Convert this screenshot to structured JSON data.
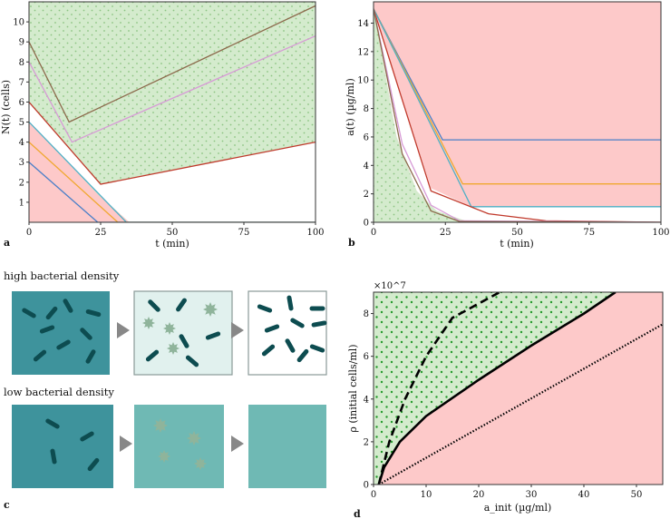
{
  "colors": {
    "green_fill": "#d4ebcd",
    "green_dot": "#8cc482",
    "pink_fill": "#fdc9c9",
    "white_band": "#ffffff",
    "dark_teal": "#0d4c50",
    "teal_high": "#3e939c",
    "teal_mid": "#6fb9b4",
    "teal_light": "#e1f1ee",
    "dead_cell": "#8fb49b",
    "arrow_gray": "#888888",
    "green_dots_d": "#239a2b"
  },
  "panel_labels": {
    "a": "a",
    "b": "b",
    "c": "c",
    "d": "d"
  },
  "chart_data": [
    {
      "id": "a",
      "type": "line",
      "xlabel": "t (min)",
      "ylabel": "N(t) (cells)",
      "xlim": [
        0,
        100
      ],
      "ylim": [
        0,
        11
      ],
      "xticks": [
        0,
        25,
        50,
        75,
        100
      ],
      "yticks": [
        1,
        2,
        3,
        4,
        5,
        6,
        7,
        8,
        9,
        10
      ],
      "regions": [
        "growth region (green, dotted)",
        "white band",
        "extinction region (pink)"
      ],
      "series": [
        {
          "name": "N0=9",
          "color": "#8c6a4c",
          "points": [
            [
              0,
              9
            ],
            [
              14,
              5
            ],
            [
              100,
              10.8
            ]
          ]
        },
        {
          "name": "N0=8",
          "color": "#d79ad6",
          "points": [
            [
              0,
              8
            ],
            [
              15,
              4
            ],
            [
              100,
              9.3
            ]
          ]
        },
        {
          "name": "N0=6",
          "color": "#c0392b",
          "points": [
            [
              0,
              6
            ],
            [
              25,
              1.9
            ],
            [
              100,
              4
            ]
          ]
        },
        {
          "name": "N0=5",
          "color": "#4fb0c6",
          "points": [
            [
              0,
              5
            ],
            [
              34,
              0
            ],
            [
              100,
              0
            ]
          ]
        },
        {
          "name": "N0=4",
          "color": "#f0a830",
          "points": [
            [
              0,
              4
            ],
            [
              31,
              0
            ],
            [
              100,
              0
            ]
          ]
        },
        {
          "name": "N0=3",
          "color": "#4a7fc8",
          "points": [
            [
              0,
              3
            ],
            [
              24,
              0
            ],
            [
              100,
              0
            ]
          ]
        }
      ]
    },
    {
      "id": "b",
      "type": "line",
      "xlabel": "t (min)",
      "ylabel": "a(t) (µg/ml)",
      "xlim": [
        0,
        100
      ],
      "ylim": [
        0,
        15.5
      ],
      "xticks": [
        0,
        25,
        50,
        75,
        100
      ],
      "yticks": [
        0,
        2,
        4,
        6,
        8,
        10,
        12,
        14
      ],
      "series": [
        {
          "name": "blue",
          "color": "#4a7fc8",
          "points": [
            [
              0,
              15
            ],
            [
              24,
              5.8
            ],
            [
              100,
              5.8
            ]
          ]
        },
        {
          "name": "orange",
          "color": "#f0a830",
          "points": [
            [
              0,
              15
            ],
            [
              31,
              2.7
            ],
            [
              100,
              2.7
            ]
          ]
        },
        {
          "name": "cyan",
          "color": "#4fb0c6",
          "points": [
            [
              0,
              15
            ],
            [
              34,
              1.1
            ],
            [
              100,
              1.1
            ]
          ]
        },
        {
          "name": "red",
          "color": "#c0392b",
          "points": [
            [
              0,
              15
            ],
            [
              20,
              2.2
            ],
            [
              40,
              0.6
            ],
            [
              60,
              0.1
            ],
            [
              100,
              0
            ]
          ]
        },
        {
          "name": "pink",
          "color": "#d79ad6",
          "points": [
            [
              0,
              15
            ],
            [
              10,
              5.5
            ],
            [
              20,
              1.2
            ],
            [
              30,
              0.1
            ],
            [
              100,
              0
            ]
          ]
        },
        {
          "name": "brown",
          "color": "#8c6a4c",
          "points": [
            [
              0,
              15
            ],
            [
              10,
              4.8
            ],
            [
              20,
              0.8
            ],
            [
              30,
              0.05
            ],
            [
              100,
              0
            ]
          ]
        }
      ]
    },
    {
      "id": "d",
      "type": "line",
      "xlabel": "a_init (µg/ml)",
      "ylabel": "ρ (initial cells/ml)",
      "axis_multiplier": "×10^7",
      "xlim": [
        0,
        55
      ],
      "ylim": [
        0,
        9
      ],
      "xticks": [
        0,
        10,
        20,
        30,
        40,
        50
      ],
      "yticks": [
        0,
        2,
        4,
        6,
        8
      ],
      "series": [
        {
          "name": "dashed boundary",
          "style": "dashed",
          "points": [
            [
              1,
              0
            ],
            [
              3,
              2
            ],
            [
              6,
              4
            ],
            [
              10,
              6
            ],
            [
              15,
              7.8
            ],
            [
              24,
              9
            ]
          ]
        },
        {
          "name": "solid boundary",
          "style": "solid",
          "points": [
            [
              1,
              0
            ],
            [
              2,
              0.8
            ],
            [
              5,
              2
            ],
            [
              10,
              3.2
            ],
            [
              20,
              4.9
            ],
            [
              30,
              6.5
            ],
            [
              40,
              8
            ],
            [
              46,
              9
            ]
          ]
        },
        {
          "name": "dotted line",
          "style": "dotted",
          "points": [
            [
              1,
              0
            ],
            [
              55,
              7.5
            ]
          ]
        }
      ]
    }
  ],
  "panel_c": {
    "high_label": "high bacterial density",
    "low_label": "low bacterial density"
  }
}
